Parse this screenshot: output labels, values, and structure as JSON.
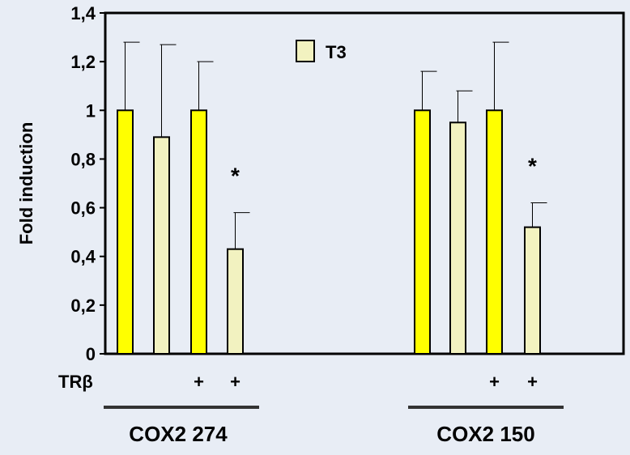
{
  "chart_data": {
    "type": "bar",
    "title": "",
    "xlabel": "",
    "ylabel": "Fold induction",
    "ylim": [
      0,
      1.4
    ],
    "yticks": [
      "0",
      "0,2",
      "0,4",
      "0,6",
      "0,8",
      "1",
      "1,2",
      "1,4"
    ],
    "grid": false,
    "legend": {
      "position": "top-center",
      "entries": [
        "T3"
      ]
    },
    "colors": {
      "control": "#ffff00",
      "T3": "#f2f2c0",
      "outline": "#000000",
      "background": "#e8edf5"
    },
    "row_label": "TRβ",
    "groups": [
      {
        "name": "COX2 274",
        "bars": [
          {
            "value": 1.0,
            "error": 0.28,
            "series": "control",
            "trb": "",
            "significance": ""
          },
          {
            "value": 0.89,
            "error": 0.38,
            "series": "T3",
            "trb": "",
            "significance": ""
          },
          {
            "value": 1.0,
            "error": 0.2,
            "series": "control",
            "trb": "+",
            "significance": ""
          },
          {
            "value": 0.43,
            "error": 0.15,
            "series": "T3",
            "trb": "+",
            "significance": "*"
          }
        ]
      },
      {
        "name": "COX2 150",
        "bars": [
          {
            "value": 1.0,
            "error": 0.16,
            "series": "control",
            "trb": "",
            "significance": ""
          },
          {
            "value": 0.95,
            "error": 0.13,
            "series": "T3",
            "trb": "",
            "significance": ""
          },
          {
            "value": 1.0,
            "error": 0.28,
            "series": "control",
            "trb": "+",
            "significance": ""
          },
          {
            "value": 0.52,
            "error": 0.1,
            "series": "T3",
            "trb": "+",
            "significance": "*"
          }
        ]
      }
    ]
  }
}
